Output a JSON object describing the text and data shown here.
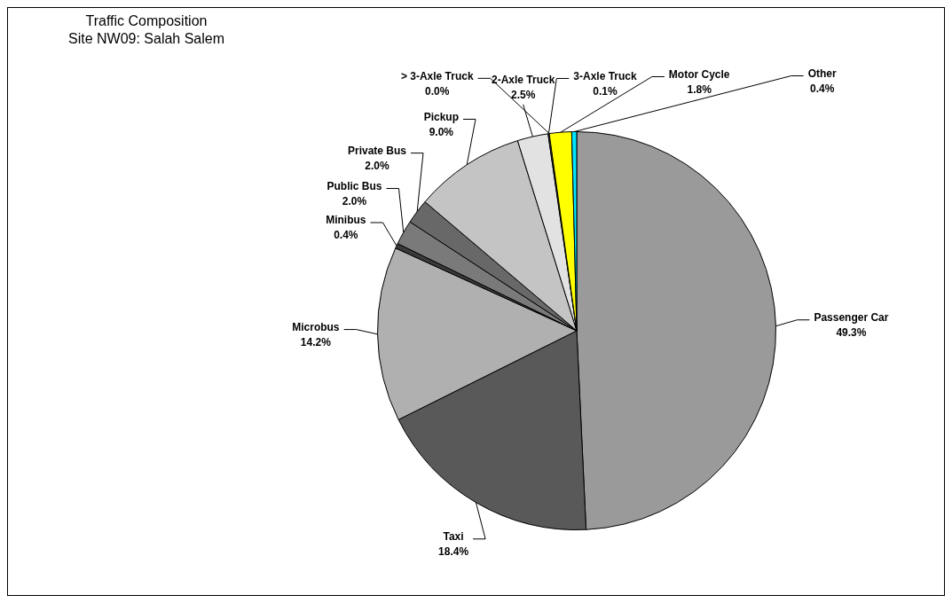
{
  "chart_data": {
    "type": "pie",
    "title": "Traffic Composition",
    "subtitle": "Site NW09: Salah Salem",
    "categories": [
      "Passenger Car",
      "Taxi",
      "Microbus",
      "Minibus",
      "Public Bus",
      "Private Bus",
      "Pickup",
      "2-Axle Truck",
      "3-Axle Truck",
      "> 3-Axle Truck",
      "Motor Cycle",
      "Other"
    ],
    "values": [
      49.3,
      18.4,
      14.2,
      0.4,
      2.0,
      2.0,
      9.0,
      2.5,
      0.1,
      0.0,
      1.8,
      0.4
    ],
    "value_labels": [
      "49.3%",
      "18.4%",
      "14.2%",
      "0.4%",
      "2.0%",
      "2.0%",
      "9.0%",
      "2.5%",
      "0.1%",
      "0.0%",
      "1.8%",
      "0.4%"
    ],
    "colors": [
      "#9a9a9a",
      "#595959",
      "#b0b0b0",
      "#3a3a3a",
      "#7a7a7a",
      "#686868",
      "#c4c4c4",
      "#e2e2e2",
      "#444444",
      "#111111",
      "#ffff00",
      "#00e5ff"
    ],
    "legend": false
  }
}
